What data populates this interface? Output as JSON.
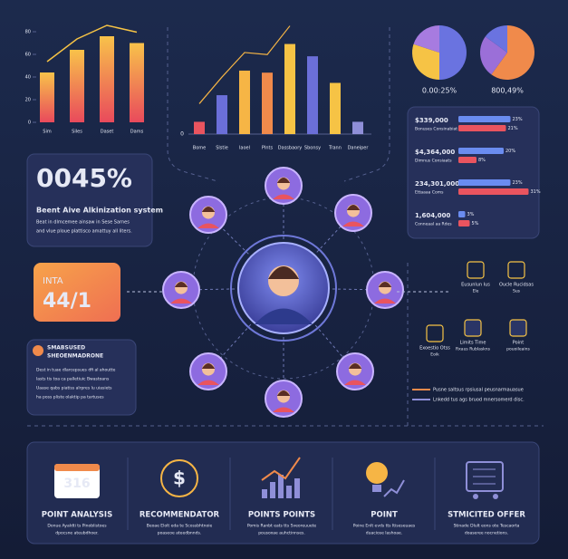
{
  "left_chart": {
    "ylim": [
      0,
      80
    ],
    "yticks": [
      0,
      20,
      40,
      60,
      80
    ],
    "values": [
      44,
      64,
      76,
      70
    ],
    "labels": [
      "Sim",
      "Siles",
      "Daset",
      "Dams"
    ]
  },
  "center_chart": {
    "ylim": [
      0,
      100
    ],
    "yticks": [
      0
    ],
    "values": [
      12,
      38,
      62,
      60,
      88,
      76,
      50,
      12
    ],
    "labels": [
      "Bome",
      "Slstie",
      "Iaoel",
      "Plnts",
      "Dassbaory",
      "Sbonsy",
      "Trann",
      "Daneiper"
    ],
    "colors": [
      "#e9545f",
      "#6b6fd8",
      "#f6b545",
      "#f08a4b",
      "#f6c345",
      "#6b6fd8",
      "#f6c345",
      "#8f8fd8"
    ]
  },
  "pies": [
    {
      "label": "0.00:25%",
      "values": [
        50,
        30,
        20
      ],
      "colors": [
        "#6a73e0",
        "#f6c345",
        "#a77be0"
      ]
    },
    {
      "label": "800,49%",
      "values": [
        60,
        25,
        15
      ],
      "colors": [
        "#f08a4b",
        "#9b6fd8",
        "#6a73e0"
      ]
    }
  ],
  "hbars": {
    "rows": [
      {
        "label": "$339,000",
        "sub": "Bonuses Consinabiat",
        "values": [
          23,
          21
        ],
        "value_labels": [
          "23%",
          "21%"
        ]
      },
      {
        "label": "$4,364,000",
        "sub": "Dimnus Consiaats",
        "values": [
          20,
          8
        ],
        "value_labels": [
          "20%",
          "8%"
        ]
      },
      {
        "label": "234,301,000",
        "sub": "Ettaaaa Coms",
        "values": [
          23,
          31
        ],
        "value_labels": [
          "23%",
          "31%"
        ]
      },
      {
        "label": "1,604,000",
        "sub": "Conneaal aa Rdes",
        "values": [
          3,
          5
        ],
        "value_labels": [
          "3%",
          "5%"
        ]
      }
    ]
  },
  "stat_card": {
    "value": "0045%",
    "title": "Beent Aive Alkinization system",
    "text": [
      "Beat in dlmcemee ainsaw in Sese Sarnes",
      "and vlue ploue plattisco amattuy all liters."
    ]
  },
  "orange_card": {
    "line1": "INTA",
    "line2": "44/1"
  },
  "info_card": {
    "title": [
      "SMABSUSED",
      "SHEOENMADRONE"
    ],
    "text": [
      "Dest in tuae dlarcepsues dfi al ahoutte",
      "lasts tis toa ca palletiuic Bwastoans",
      "Uaase qabs piatiss alrpres lu uiasiets",
      "ha poss pliste olaktip pa tartuses"
    ]
  },
  "right_icons": [
    {
      "label": "Eusunlun lus",
      "sub": "Ele"
    },
    {
      "label": "Oucle Rucidsas",
      "sub": "Sus"
    },
    {
      "label": "Exoestio Otss",
      "sub": "Eoik"
    },
    {
      "label": "Limits Time",
      "sub": "Rxaus Rublaskns"
    },
    {
      "label": "Point",
      "sub": "pouoileains"
    }
  ],
  "legend": [
    "Pusne saltsus rpsiusal peusnarmauasue",
    "Lnkedd tus ags bruod mnersomerd disc."
  ],
  "bottom": [
    {
      "icon": "316",
      "title": "POINT ANALYSIS",
      "text": [
        "Donue Ayaldti ts Pinoblistoes",
        "dpocsne ateubdhoer."
      ]
    },
    {
      "icon": "$",
      "title": "RECOMMENDATOR",
      "text": [
        "Beoae Elolt eda te Scossbhtnoie",
        "poaseoe ateedbnnds."
      ]
    },
    {
      "icon": "",
      "title": "POINTS POINTS",
      "text": [
        "Pomis Ranbt eats tts Sveoreuuete",
        "pousoxae auhctinnses."
      ]
    },
    {
      "icon": "",
      "title": "POINT",
      "text": [
        "Poine Enlt evds tts Itiseseuaes",
        "duaciose lashoae."
      ]
    },
    {
      "icon": "",
      "title": "STMICITED OFFER",
      "text": [
        "Stinade Dlult eons ote Tescaorta",
        "doaseree nocnetions."
      ]
    }
  ]
}
